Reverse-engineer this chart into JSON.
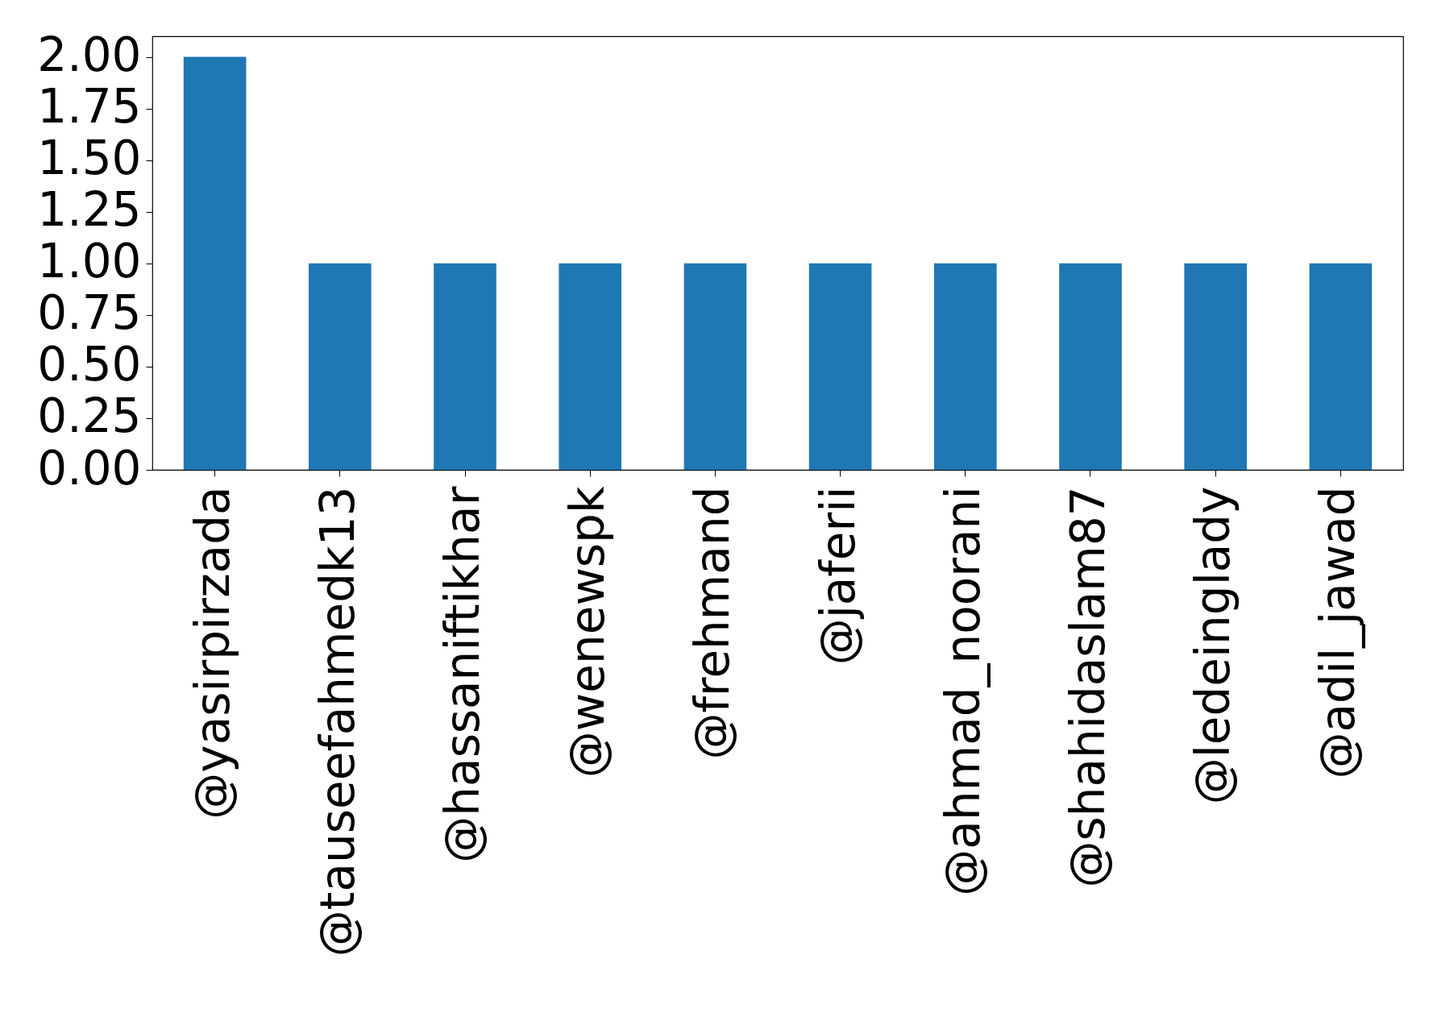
{
  "chart_data": {
    "type": "bar",
    "categories": [
      "@yasirpirzada",
      "@tauseefahmedk13",
      "@hassaniftikhar",
      "@wenewspk",
      "@frehmand",
      "@jaferii",
      "@ahmad_noorani",
      "@shahidaslam87",
      "@ledeinglady",
      "@adil_jawad"
    ],
    "values": [
      2,
      1,
      1,
      1,
      1,
      1,
      1,
      1,
      1,
      1
    ],
    "color": "#1f77b4",
    "ylim": [
      0,
      2.1
    ],
    "yticks": [
      {
        "value": 0,
        "label": "0.00"
      },
      {
        "value": 0.25,
        "label": "0.25"
      },
      {
        "value": 0.5,
        "label": "0.50"
      },
      {
        "value": 0.75,
        "label": "0.75"
      },
      {
        "value": 1,
        "label": "1.00"
      },
      {
        "value": 1.25,
        "label": "1.25"
      },
      {
        "value": 1.5,
        "label": "1.50"
      },
      {
        "value": 1.75,
        "label": "1.75"
      },
      {
        "value": 2,
        "label": "2.00"
      }
    ],
    "grid": false
  }
}
